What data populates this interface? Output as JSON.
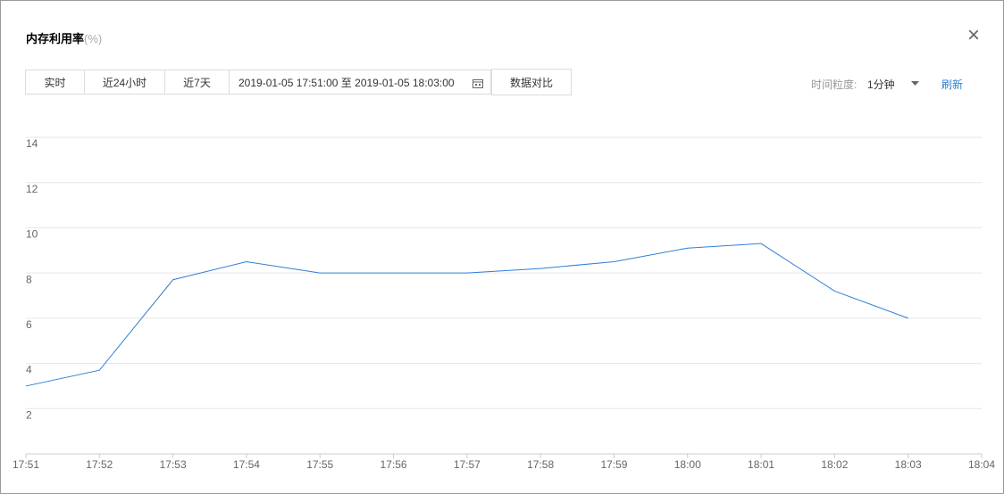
{
  "dialog": {
    "close": "×"
  },
  "toolbar": {
    "buttons": [
      "实时",
      "近24小时",
      "近7天"
    ],
    "range_start": "2019-01-05 17:51:00",
    "range_sep": "至",
    "range_end": "2019-01-05 18:03:00",
    "compare": "数据对比",
    "granularity_label": "时间粒度:",
    "granularity": "1分钟",
    "refresh": "刷新"
  },
  "chart_data": {
    "type": "line",
    "title": "内存利用率",
    "unit": "(%)",
    "categories": [
      "17:51",
      "17:52",
      "17:53",
      "17:54",
      "17:55",
      "17:56",
      "17:57",
      "17:58",
      "17:59",
      "18:00",
      "18:01",
      "18:02",
      "18:03",
      "18:04"
    ],
    "values": [
      3.0,
      3.7,
      7.7,
      8.5,
      8.0,
      8.0,
      8.0,
      8.2,
      8.5,
      9.1,
      9.3,
      7.2,
      6.0,
      null
    ],
    "color": "#2f7fd6",
    "ylim": [
      0,
      14
    ],
    "yticks": [
      2,
      4,
      6,
      8,
      10,
      12,
      14
    ],
    "grid": true
  }
}
